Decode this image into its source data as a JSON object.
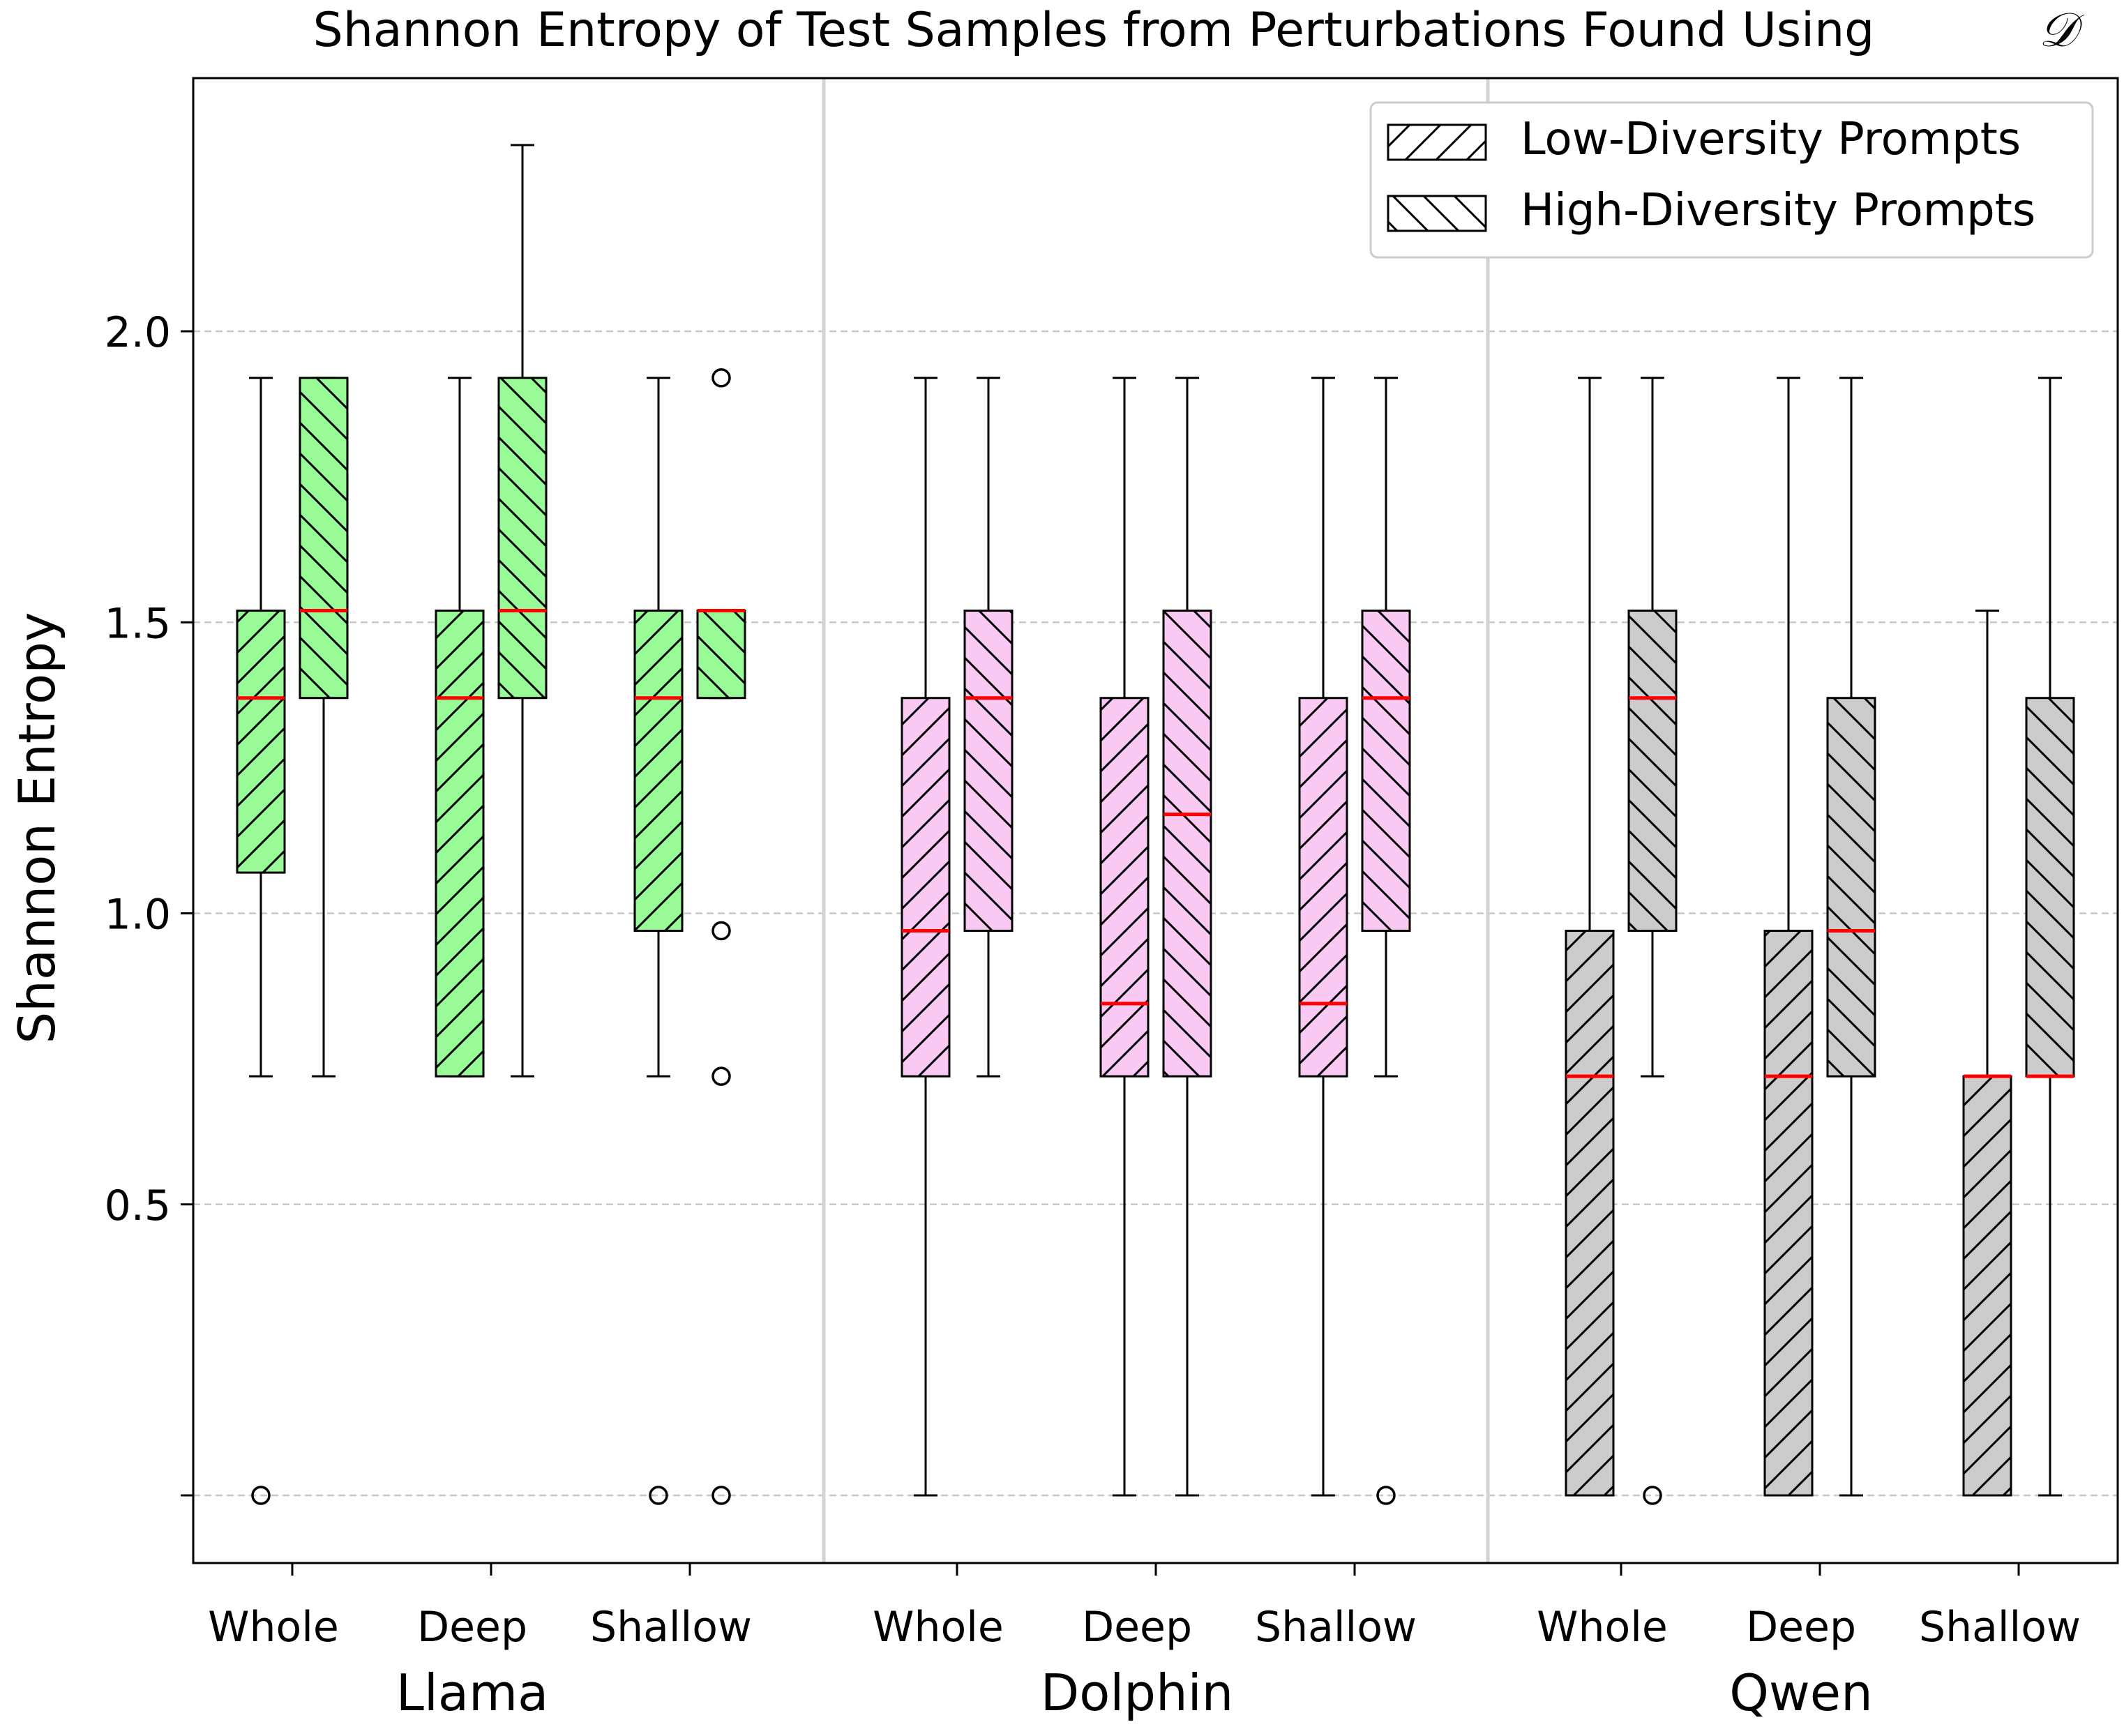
{
  "chart_data": {
    "type": "boxplot",
    "title": "Shannon Entropy of Test Samples from Perturbations Found Using",
    "title_symbol": "𝒟",
    "ylabel": "Shannon Entropy",
    "ylim": [
      -0.12,
      2.43
    ],
    "yticks": [
      0.0,
      0.5,
      1.0,
      1.5,
      2.0
    ],
    "ytick_labels": [
      "",
      "0.5",
      "1.0",
      "1.5",
      "2.0"
    ],
    "grid": "horizontal dashed",
    "legend": {
      "position": "top-right",
      "entries": [
        {
          "label": "Low-Diversity Prompts",
          "hatch": "forward"
        },
        {
          "label": "High-Diversity Prompts",
          "hatch": "backward"
        }
      ]
    },
    "groups": [
      {
        "name": "Llama",
        "color": "#98fb98",
        "categories": [
          {
            "name": "Whole",
            "low": {
              "whisker_low": 0.72,
              "q1": 1.07,
              "median": 1.37,
              "q3": 1.52,
              "whisker_high": 1.92,
              "outliers": [
                0.0
              ]
            },
            "high": {
              "whisker_low": 0.72,
              "q1": 1.37,
              "median": 1.52,
              "q3": 1.92,
              "whisker_high": 1.92,
              "outliers": []
            }
          },
          {
            "name": "Deep",
            "low": {
              "whisker_low": 0.72,
              "q1": 0.72,
              "median": 1.37,
              "q3": 1.52,
              "whisker_high": 1.92,
              "outliers": []
            },
            "high": {
              "whisker_low": 0.72,
              "q1": 1.37,
              "median": 1.52,
              "q3": 1.92,
              "whisker_high": 2.32,
              "outliers": []
            }
          },
          {
            "name": "Shallow",
            "low": {
              "whisker_low": 0.72,
              "q1": 0.97,
              "median": 1.37,
              "q3": 1.52,
              "whisker_high": 1.92,
              "outliers": [
                0.0
              ]
            },
            "high": {
              "whisker_low": 1.37,
              "q1": 1.37,
              "median": 1.52,
              "q3": 1.52,
              "whisker_high": 1.52,
              "outliers": [
                1.92,
                0.97,
                0.72,
                0.0
              ]
            }
          }
        ]
      },
      {
        "name": "Dolphin",
        "color": "#f9c8f3",
        "categories": [
          {
            "name": "Whole",
            "low": {
              "whisker_low": 0.0,
              "q1": 0.72,
              "median": 0.97,
              "q3": 1.37,
              "whisker_high": 1.92,
              "outliers": []
            },
            "high": {
              "whisker_low": 0.72,
              "q1": 0.97,
              "median": 1.37,
              "q3": 1.52,
              "whisker_high": 1.92,
              "outliers": []
            }
          },
          {
            "name": "Deep",
            "low": {
              "whisker_low": 0.0,
              "q1": 0.72,
              "median": 0.845,
              "q3": 1.37,
              "whisker_high": 1.92,
              "outliers": []
            },
            "high": {
              "whisker_low": 0.0,
              "q1": 0.72,
              "median": 1.17,
              "q3": 1.52,
              "whisker_high": 1.92,
              "outliers": []
            }
          },
          {
            "name": "Shallow",
            "low": {
              "whisker_low": 0.0,
              "q1": 0.72,
              "median": 0.845,
              "q3": 1.37,
              "whisker_high": 1.92,
              "outliers": []
            },
            "high": {
              "whisker_low": 0.72,
              "q1": 0.97,
              "median": 1.37,
              "q3": 1.52,
              "whisker_high": 1.92,
              "outliers": [
                0.0
              ]
            }
          }
        ]
      },
      {
        "name": "Qwen",
        "color": "#cccccc",
        "categories": [
          {
            "name": "Whole",
            "low": {
              "whisker_low": 0.0,
              "q1": 0.0,
              "median": 0.72,
              "q3": 0.97,
              "whisker_high": 1.92,
              "outliers": []
            },
            "high": {
              "whisker_low": 0.72,
              "q1": 0.97,
              "median": 1.37,
              "q3": 1.52,
              "whisker_high": 1.92,
              "outliers": [
                0.0
              ]
            }
          },
          {
            "name": "Deep",
            "low": {
              "whisker_low": 0.0,
              "q1": 0.0,
              "median": 0.72,
              "q3": 0.97,
              "whisker_high": 1.92,
              "outliers": []
            },
            "high": {
              "whisker_low": 0.0,
              "q1": 0.72,
              "median": 0.97,
              "q3": 1.37,
              "whisker_high": 1.92,
              "outliers": []
            }
          },
          {
            "name": "Shallow",
            "low": {
              "whisker_low": 0.0,
              "q1": 0.0,
              "median": 0.72,
              "q3": 0.72,
              "whisker_high": 1.52,
              "outliers": []
            },
            "high": {
              "whisker_low": 0.0,
              "q1": 0.72,
              "median": 0.72,
              "q3": 1.37,
              "whisker_high": 1.92,
              "outliers": []
            }
          }
        ]
      }
    ],
    "median_color": "#ff0000"
  }
}
